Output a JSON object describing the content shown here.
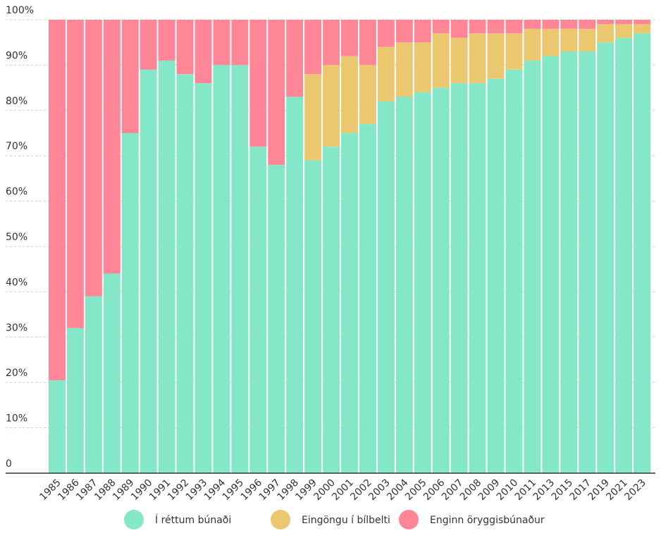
{
  "chart_data": {
    "type": "stacked_bar",
    "categories": [
      "1985",
      "1986",
      "1987",
      "1988",
      "1989",
      "1990",
      "1991",
      "1992",
      "1993",
      "1994",
      "1995",
      "1996",
      "1997",
      "1998",
      "1999",
      "2000",
      "2001",
      "2002",
      "2003",
      "2004",
      "2005",
      "2006",
      "2007",
      "2008",
      "2009",
      "2010",
      "2011",
      "2013",
      "2015",
      "2017",
      "2019",
      "2021",
      "2023"
    ],
    "series": [
      {
        "name": "Í réttum búnaði",
        "color": "#84e8c8",
        "values": [
          20.5,
          32,
          39,
          44,
          75,
          89,
          91,
          88,
          86,
          90,
          90,
          72,
          68,
          83,
          69,
          72,
          75,
          77,
          82,
          83,
          84,
          85,
          86,
          86,
          87,
          89,
          91,
          92,
          93,
          93,
          95,
          96,
          97
        ]
      },
      {
        "name": "Eingöngu í bílbelti",
        "color": "#ebc870",
        "values": [
          0,
          0,
          0,
          0,
          0,
          0,
          0,
          0,
          0,
          0,
          0,
          0,
          0,
          0,
          19,
          18,
          17,
          13,
          12,
          12,
          11,
          12,
          10,
          11,
          10,
          8,
          7,
          6,
          5,
          5,
          4,
          3,
          2
        ]
      },
      {
        "name": "Enginn öryggisbúnaður",
        "color": "#ff8696",
        "values": [
          79.5,
          68,
          61,
          56,
          25,
          11,
          9,
          12,
          14,
          10,
          10,
          28,
          32,
          17,
          12,
          10,
          8,
          10,
          6,
          5,
          5,
          3,
          4,
          3,
          3,
          3,
          2,
          2,
          2,
          2,
          1,
          1,
          1
        ]
      }
    ],
    "ylim": [
      0,
      100
    ],
    "yticks": [
      0,
      {
        "value": 10,
        "label": "10%"
      },
      {
        "value": 20,
        "label": "20%"
      },
      {
        "value": 30,
        "label": "30%"
      },
      {
        "value": 40,
        "label": "40%"
      },
      {
        "value": 50,
        "label": "50%"
      },
      {
        "value": 60,
        "label": "60%"
      },
      {
        "value": 70,
        "label": "70%"
      },
      {
        "value": 80,
        "label": "80%"
      },
      {
        "value": 90,
        "label": "90%"
      },
      {
        "value": 100,
        "label": "100%"
      }
    ],
    "grid": true,
    "legend": "bottom"
  }
}
